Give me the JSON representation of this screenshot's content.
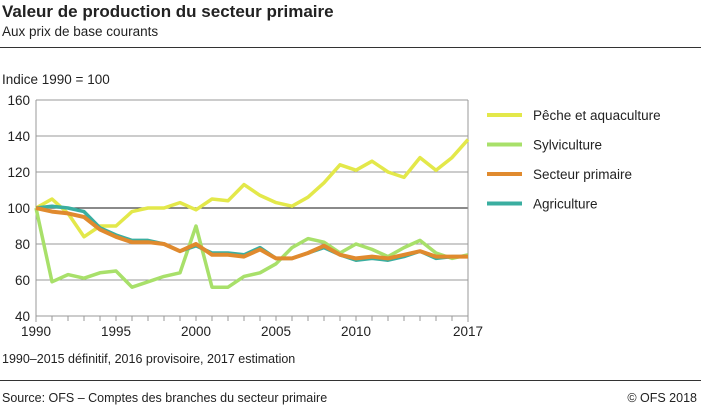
{
  "title": "Valeur de production du secteur primaire",
  "subtitle": "Aux prix de base courants",
  "note": "1990–2015 définitif, 2016 provisoire, 2017 estimation",
  "source": "Source: OFS – Comptes des branches du secteur primaire",
  "copyright": "© OFS  2018",
  "chart_data": {
    "type": "line",
    "title": "Valeur de production du secteur primaire",
    "subtitle": "Aux prix de base courants",
    "ylabel": "Indice 1990 = 100",
    "xlim": [
      1990,
      2017
    ],
    "ylim": [
      40,
      160
    ],
    "yticks": [
      40,
      60,
      80,
      100,
      120,
      140,
      160
    ],
    "xticks": [
      1990,
      1995,
      2000,
      2005,
      2010,
      2017
    ],
    "grid": true,
    "legend": "right",
    "x": [
      1990,
      1991,
      1992,
      1993,
      1994,
      1995,
      1996,
      1997,
      1998,
      1999,
      2000,
      2001,
      2002,
      2003,
      2004,
      2005,
      2006,
      2007,
      2008,
      2009,
      2010,
      2011,
      2012,
      2013,
      2014,
      2015,
      2016,
      2017
    ],
    "series": [
      {
        "name": "Pêche et aquaculture",
        "color": "#e3e84a",
        "values": [
          100,
          105,
          97,
          84,
          90,
          90,
          98,
          100,
          100,
          103,
          99,
          105,
          104,
          113,
          107,
          103,
          101,
          106,
          114,
          124,
          121,
          126,
          120,
          117,
          128,
          121,
          128,
          138
        ]
      },
      {
        "name": "Sylviculture",
        "color": "#a8e06a",
        "values": [
          100,
          59,
          63,
          61,
          64,
          65,
          56,
          59,
          62,
          64,
          90,
          56,
          56,
          62,
          64,
          69,
          78,
          83,
          81,
          75,
          80,
          77,
          73,
          78,
          82,
          75,
          72,
          74
        ]
      },
      {
        "name": "Secteur primaire",
        "color": "#e08a2e",
        "values": [
          100,
          98,
          97,
          95,
          88,
          84,
          81,
          81,
          80,
          76,
          80,
          74,
          74,
          73,
          77,
          72,
          72,
          75,
          79,
          74,
          72,
          73,
          72,
          74,
          76,
          73,
          73,
          73
        ]
      },
      {
        "name": "Agriculture",
        "color": "#3aaea0",
        "values": [
          100,
          101,
          100,
          98,
          89,
          85,
          82,
          82,
          80,
          76,
          79,
          75,
          75,
          74,
          78,
          72,
          72,
          75,
          78,
          74,
          71,
          72,
          71,
          73,
          76,
          72,
          73,
          73
        ]
      }
    ]
  }
}
